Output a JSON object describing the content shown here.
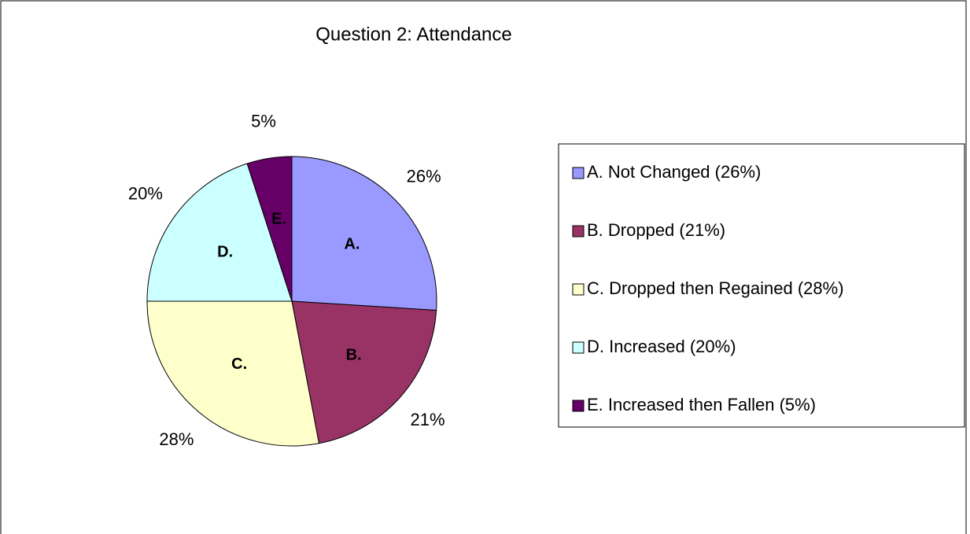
{
  "chart_data": {
    "type": "pie",
    "title": "Question 2: Attendance",
    "categories": [
      "A. Not Changed (26%)",
      "B. Dropped (21%)",
      "C. Dropped then Regained (28%)",
      "D. Increased (20%)",
      "E. Increased then Fallen (5%)"
    ],
    "slice_labels": [
      "A.",
      "B.",
      "C.",
      "D.",
      "E."
    ],
    "values": [
      26,
      21,
      28,
      20,
      5
    ],
    "value_labels": [
      "26%",
      "21%",
      "28%",
      "20%",
      "5%"
    ],
    "colors": [
      "#9999ff",
      "#993366",
      "#ffffcc",
      "#ccffff",
      "#660066"
    ],
    "legend": "right"
  }
}
